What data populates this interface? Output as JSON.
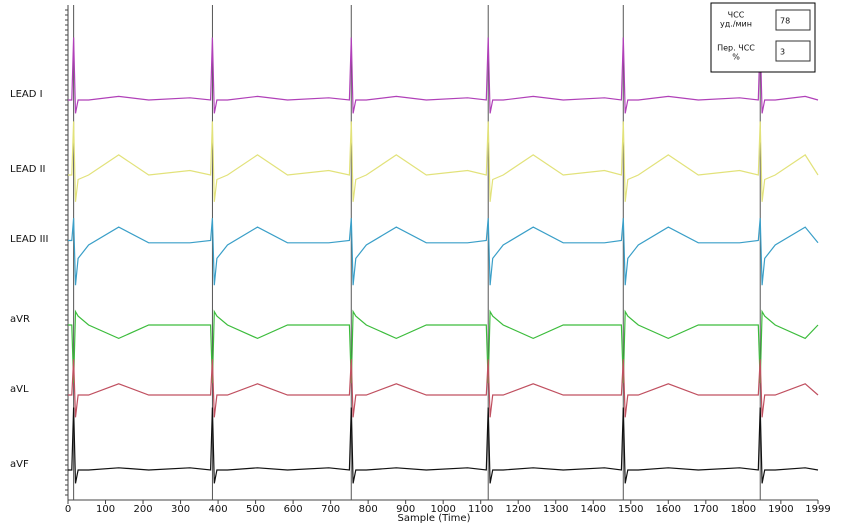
{
  "chart_data": {
    "type": "line",
    "xlabel": "Sample (Time)",
    "x": [
      0,
      10,
      15,
      20,
      27,
      55,
      135,
      215,
      325,
      380,
      385,
      390,
      397,
      425,
      505,
      585,
      695,
      750,
      755,
      760,
      767,
      795,
      875,
      955,
      1065,
      1115,
      1120,
      1125,
      1132,
      1160,
      1240,
      1320,
      1430,
      1475,
      1480,
      1485,
      1492,
      1520,
      1600,
      1680,
      1790,
      1840,
      1845,
      1850,
      1857,
      1885,
      1965,
      1999
    ],
    "xlim": [
      0,
      1999
    ],
    "xticks": [
      0,
      100,
      200,
      300,
      400,
      500,
      600,
      700,
      800,
      900,
      1000,
      1100,
      1200,
      1300,
      1400,
      1500,
      1600,
      1700,
      1800,
      1900,
      1999
    ],
    "ylim": [
      -1.5,
      1.5
    ],
    "beat_lines": [
      15,
      385,
      755,
      1120,
      1480,
      1845
    ],
    "series": [
      {
        "name": "LEAD I",
        "color": "#b040b8",
        "values": [
          0,
          0,
          1.4,
          -0.3,
          0,
          0,
          0.08,
          0,
          0.05,
          0,
          1.4,
          -0.3,
          0,
          0,
          0.08,
          0,
          0.05,
          0,
          1.4,
          -0.3,
          0,
          0,
          0.08,
          0,
          0.05,
          0,
          1.4,
          -0.3,
          0,
          0,
          0.08,
          0,
          0.05,
          0,
          1.4,
          -0.3,
          0,
          0,
          0.08,
          0,
          0.05,
          0,
          1.4,
          -0.3,
          0,
          0,
          0.08,
          0
        ]
      },
      {
        "name": "LEAD II",
        "color": "#e2e27a",
        "values": [
          0,
          0,
          1.2,
          -0.6,
          -0.1,
          0,
          0.45,
          0,
          0.1,
          0,
          1.2,
          -0.6,
          -0.1,
          0,
          0.45,
          0,
          0.1,
          0,
          1.2,
          -0.6,
          -0.1,
          0,
          0.45,
          0,
          0.1,
          0,
          1.2,
          -0.6,
          -0.1,
          0,
          0.45,
          0,
          0.1,
          0,
          1.2,
          -0.6,
          -0.1,
          0,
          0.45,
          0,
          0.1,
          0,
          1.2,
          -0.6,
          -0.1,
          0,
          0.45,
          0
        ]
      },
      {
        "name": "LEAD III",
        "color": "#3a9fc8",
        "values": [
          0.1,
          0.1,
          0.6,
          -0.9,
          -0.3,
          0,
          0.4,
          0.05,
          0.05,
          0.1,
          0.6,
          -0.9,
          -0.3,
          0,
          0.4,
          0.05,
          0.05,
          0.1,
          0.6,
          -0.9,
          -0.3,
          0,
          0.4,
          0.05,
          0.05,
          0.1,
          0.6,
          -0.9,
          -0.3,
          0,
          0.4,
          0.05,
          0.05,
          0.1,
          0.6,
          -0.9,
          -0.3,
          0,
          0.4,
          0.05,
          0.05,
          0.1,
          0.6,
          -0.9,
          -0.3,
          0,
          0.4,
          0.05
        ]
      },
      {
        "name": "aVR",
        "color": "#3cbc3c",
        "values": [
          0,
          0,
          -1.3,
          0.3,
          0.2,
          0,
          -0.3,
          0,
          0,
          0,
          -1.3,
          0.3,
          0.2,
          0,
          -0.3,
          0,
          0,
          0,
          -1.3,
          0.3,
          0.2,
          0,
          -0.3,
          0,
          0,
          0,
          -1.3,
          0.3,
          0.2,
          0,
          -0.3,
          0,
          0,
          0,
          -1.3,
          0.3,
          0.2,
          0,
          -0.3,
          0,
          0,
          0,
          -1.3,
          0.3,
          0.2,
          0,
          -0.3,
          0
        ]
      },
      {
        "name": "aVL",
        "color": "#c05060",
        "values": [
          0,
          0,
          0.8,
          -0.5,
          0,
          0,
          0.25,
          0,
          0,
          0,
          0.8,
          -0.5,
          0,
          0,
          0.25,
          0,
          0,
          0,
          0.8,
          -0.5,
          0,
          0,
          0.25,
          0,
          0,
          0,
          0.8,
          -0.5,
          0,
          0,
          0.25,
          0,
          0,
          0,
          0.8,
          -0.5,
          0,
          0,
          0.25,
          0,
          0,
          0,
          0.8,
          -0.5,
          0,
          0,
          0.25,
          0
        ]
      },
      {
        "name": "aVF",
        "color": "#111111",
        "values": [
          0,
          0,
          1.4,
          -0.3,
          0,
          0,
          0.05,
          0,
          0.05,
          0,
          1.4,
          -0.3,
          0,
          0,
          0.05,
          0,
          0.05,
          0,
          1.4,
          -0.3,
          0,
          0,
          0.05,
          0,
          0.05,
          0,
          1.4,
          -0.3,
          0,
          0,
          0.05,
          0,
          0.05,
          0,
          1.4,
          -0.3,
          0,
          0,
          0.05,
          0,
          0.05,
          0,
          1.4,
          -0.3,
          0,
          0,
          0.05,
          0
        ]
      }
    ]
  },
  "hr_panel": {
    "hr_label": "ЧСС",
    "hr_unit": "уд./мин",
    "hr_value": "78",
    "var_label": "Пер. ЧСС",
    "var_unit": "%",
    "var_value": "3"
  }
}
